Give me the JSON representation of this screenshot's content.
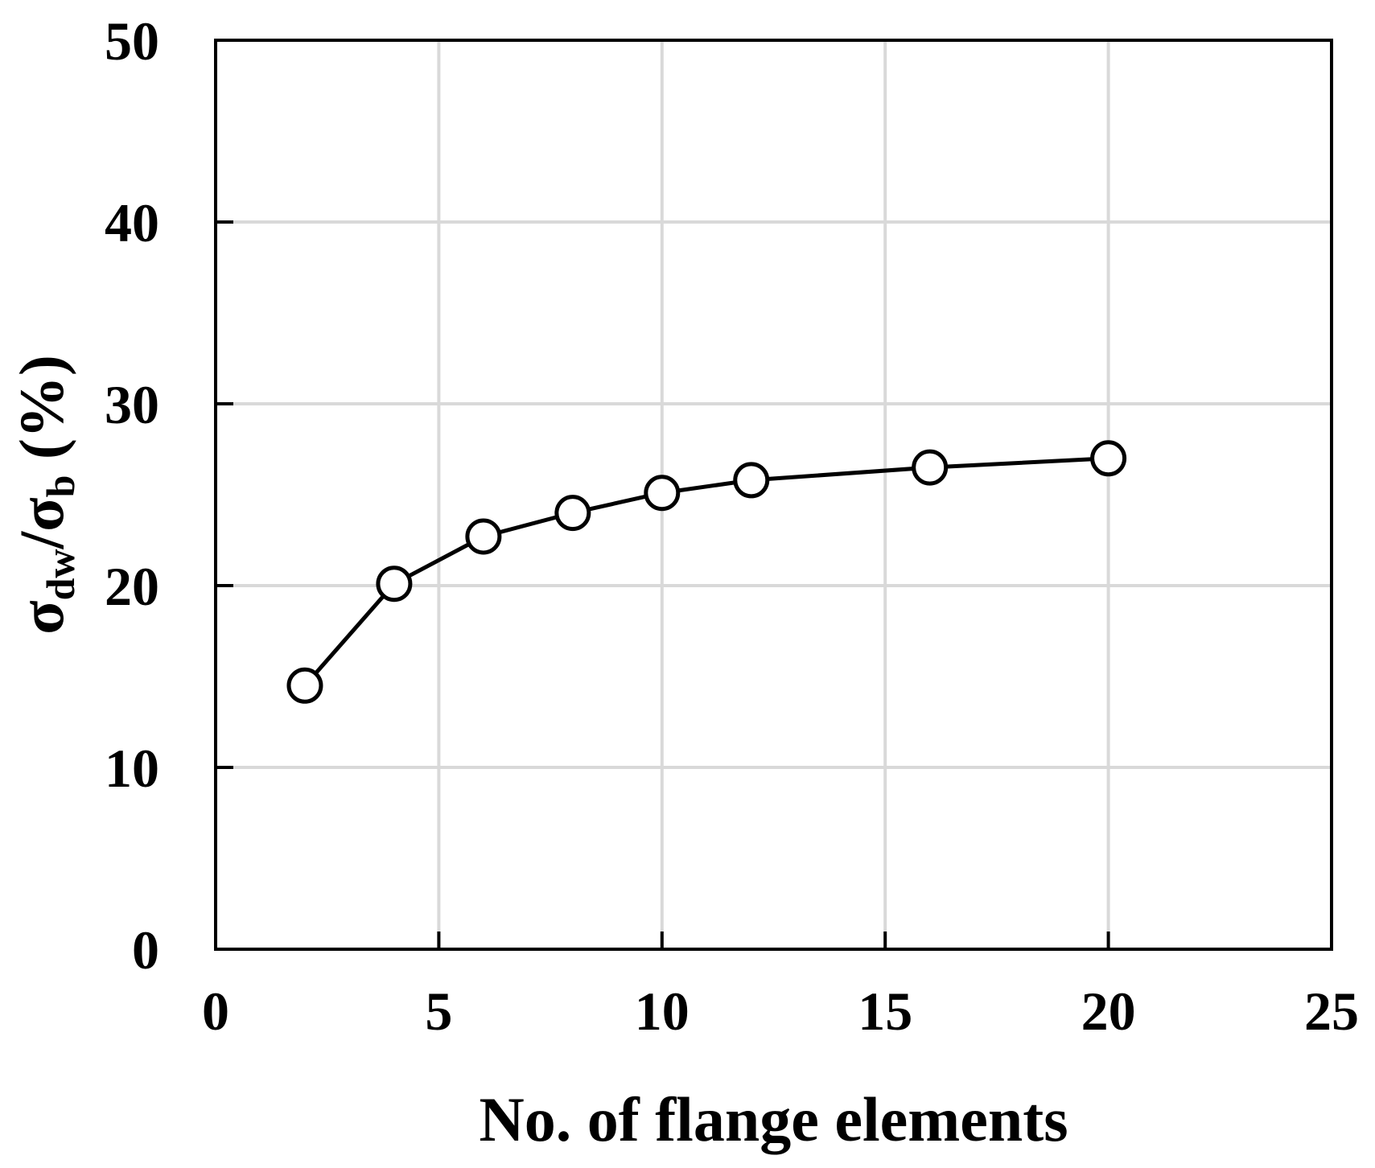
{
  "chart_data": {
    "type": "line",
    "title": "",
    "xlabel": "No. of flange elements",
    "ylabel": {
      "sigma": "σ",
      "sub_numerator": "dw",
      "slash": "/",
      "sub_denominator": "b",
      "unit": " (%)"
    },
    "xlim": [
      0,
      25
    ],
    "ylim": [
      0,
      50
    ],
    "xticks": [
      0,
      5,
      10,
      15,
      20,
      25
    ],
    "yticks": [
      0,
      10,
      20,
      30,
      40,
      50
    ],
    "grid": true,
    "series": [
      {
        "marker": "open-circle",
        "x": [
          2,
          4,
          6,
          8,
          10,
          12,
          16,
          20
        ],
        "y": [
          14.5,
          20.1,
          22.7,
          24.0,
          25.1,
          25.8,
          26.5,
          27.0
        ]
      }
    ],
    "colors": {
      "line": "#000000",
      "marker_fill": "#ffffff",
      "grid": "#d9d9d9",
      "axis": "#000000"
    }
  }
}
